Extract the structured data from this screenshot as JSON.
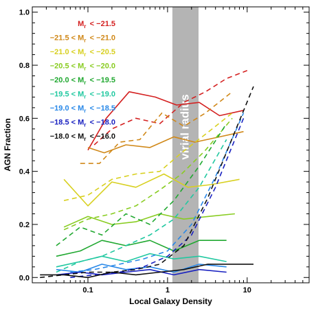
{
  "chart_data": {
    "type": "line",
    "xlabel": "Local Galaxy Density",
    "ylabel": "AGN Fraction",
    "xscale": "log",
    "xlim": [
      0.02,
      60
    ],
    "ylim": [
      -0.02,
      1.02
    ],
    "x_ticks": [
      {
        "value": 0.1,
        "label": "0.1"
      },
      {
        "value": 1,
        "label": "1"
      },
      {
        "value": 10,
        "label": "10"
      }
    ],
    "y_ticks": [
      {
        "value": 0.0,
        "label": "0.0"
      },
      {
        "value": 0.2,
        "label": "0.2"
      },
      {
        "value": 0.4,
        "label": "0.4"
      },
      {
        "value": 0.6,
        "label": "0.6"
      },
      {
        "value": 0.8,
        "label": "0.8"
      },
      {
        "value": 1.0,
        "label": "1.0"
      }
    ],
    "grid": false,
    "legend_position": "top-left",
    "band": {
      "x_range": [
        1.15,
        2.45
      ],
      "label": "virial radius",
      "color": "#b4b4b4"
    },
    "series": [
      {
        "name": "M_r < −21.5",
        "color": "#d42020",
        "solid": {
          "x": [
            0.1,
            0.17,
            0.33,
            0.7,
            1.3,
            2.5,
            4.5,
            9
          ],
          "y": [
            0.48,
            0.6,
            0.7,
            0.68,
            0.65,
            0.66,
            0.61,
            0.63
          ]
        },
        "dashed": {
          "x": [
            0.12,
            0.2,
            0.4,
            0.8,
            1.6,
            3.0,
            5.5,
            10
          ],
          "y": [
            0.5,
            0.56,
            0.6,
            0.58,
            0.66,
            0.7,
            0.75,
            0.78
          ]
        }
      },
      {
        "name": "−21.5 < M_r < −21.0",
        "color": "#d08818",
        "solid": {
          "x": [
            0.1,
            0.16,
            0.3,
            0.6,
            1.2,
            2.2,
            4.5,
            9
          ],
          "y": [
            0.49,
            0.47,
            0.5,
            0.49,
            0.53,
            0.51,
            0.53,
            0.55
          ]
        },
        "dashed": {
          "x": [
            0.08,
            0.14,
            0.25,
            0.45,
            0.85,
            1.6,
            3.0,
            6.5
          ],
          "y": [
            0.43,
            0.43,
            0.51,
            0.52,
            0.62,
            0.57,
            0.62,
            0.7
          ]
        }
      },
      {
        "name": "−21.0 < M_r < −20.5",
        "color": "#d8d020",
        "solid": {
          "x": [
            0.05,
            0.1,
            0.2,
            0.4,
            0.9,
            1.8,
            3.5,
            8
          ],
          "y": [
            0.37,
            0.27,
            0.36,
            0.34,
            0.39,
            0.34,
            0.35,
            0.37
          ]
        },
        "dashed": {
          "x": [
            0.05,
            0.1,
            0.2,
            0.4,
            0.8,
            1.5,
            3.0,
            6.5
          ],
          "y": [
            0.29,
            0.31,
            0.37,
            0.39,
            0.4,
            0.47,
            0.54,
            0.62
          ]
        }
      },
      {
        "name": "−20.5 < M_r < −20.0",
        "color": "#88cc20",
        "solid": {
          "x": [
            0.05,
            0.1,
            0.2,
            0.4,
            0.8,
            1.6,
            3.2,
            7
          ],
          "y": [
            0.19,
            0.23,
            0.2,
            0.21,
            0.24,
            0.22,
            0.23,
            0.24
          ]
        },
        "dashed": {
          "x": [
            0.05,
            0.1,
            0.2,
            0.4,
            0.8,
            1.5,
            3.0,
            6.5
          ],
          "y": [
            0.18,
            0.22,
            0.24,
            0.27,
            0.33,
            0.39,
            0.48,
            0.6
          ]
        }
      },
      {
        "name": "−20.0 < M_r < −19.5",
        "color": "#20a830",
        "solid": {
          "x": [
            0.04,
            0.08,
            0.15,
            0.3,
            0.6,
            1.2,
            2.5,
            5.5
          ],
          "y": [
            0.08,
            0.1,
            0.14,
            0.12,
            0.14,
            0.1,
            0.14,
            0.14
          ]
        },
        "dashed": {
          "x": [
            0.04,
            0.08,
            0.15,
            0.3,
            0.6,
            1.2,
            2.5,
            5.5
          ],
          "y": [
            0.12,
            0.19,
            0.16,
            0.24,
            0.2,
            0.29,
            0.42,
            0.58
          ]
        }
      },
      {
        "name": "−19.5 < M_r < −19.0",
        "color": "#20c8a0",
        "solid": {
          "x": [
            0.04,
            0.08,
            0.15,
            0.3,
            0.6,
            1.2,
            2.5,
            5.5
          ],
          "y": [
            0.04,
            0.06,
            0.08,
            0.06,
            0.09,
            0.07,
            0.08,
            0.06
          ]
        },
        "dashed": {
          "x": [
            0.04,
            0.08,
            0.15,
            0.3,
            0.6,
            1.2,
            2.5,
            5.5
          ],
          "y": [
            0.02,
            0.06,
            0.08,
            0.12,
            0.16,
            0.22,
            0.34,
            0.52
          ]
        }
      },
      {
        "name": "−19.0 < M_r < −18.5",
        "color": "#2888e8",
        "solid": {
          "x": [
            0.04,
            0.08,
            0.15,
            0.3,
            0.6,
            1.2,
            2.5,
            5.5
          ],
          "y": [
            0.03,
            0.02,
            0.05,
            0.03,
            0.04,
            0.02,
            0.05,
            0.04
          ]
        },
        "dashed": {
          "x": [
            0.06,
            0.12,
            0.25,
            0.5,
            1.0,
            2.0,
            4.0,
            9
          ],
          "y": [
            0.02,
            0.03,
            0.05,
            0.07,
            0.1,
            0.2,
            0.38,
            0.62
          ]
        }
      },
      {
        "name": "−18.5 < M_r < −18.0",
        "color": "#1820c0",
        "solid": {
          "x": [
            0.04,
            0.08,
            0.15,
            0.3,
            0.6,
            1.2,
            2.5,
            5.5
          ],
          "y": [
            0.01,
            0.02,
            0.01,
            0.02,
            0.03,
            0.01,
            0.03,
            0.02
          ]
        },
        "dashed": {
          "x": [
            0.06,
            0.12,
            0.25,
            0.5,
            1.0,
            2.0,
            4.0,
            9
          ],
          "y": [
            0.0,
            0.01,
            0.02,
            0.04,
            0.08,
            0.16,
            0.34,
            0.6
          ]
        }
      },
      {
        "name": "−18.0 < M_r < −16.0",
        "color": "#101010",
        "solid": {
          "x": [
            0.025,
            0.05,
            0.1,
            0.2,
            0.4,
            0.8,
            1.6,
            3.2,
            12
          ],
          "y": [
            0.01,
            0.01,
            0.0,
            0.02,
            0.01,
            0.02,
            0.03,
            0.05,
            0.05
          ]
        },
        "dashed": {
          "x": [
            0.025,
            0.05,
            0.1,
            0.2,
            0.4,
            0.8,
            1.6,
            3.2,
            6,
            12
          ],
          "y": [
            0.0,
            0.01,
            0.02,
            0.02,
            0.03,
            0.05,
            0.12,
            0.3,
            0.5,
            0.72
          ]
        }
      }
    ]
  }
}
